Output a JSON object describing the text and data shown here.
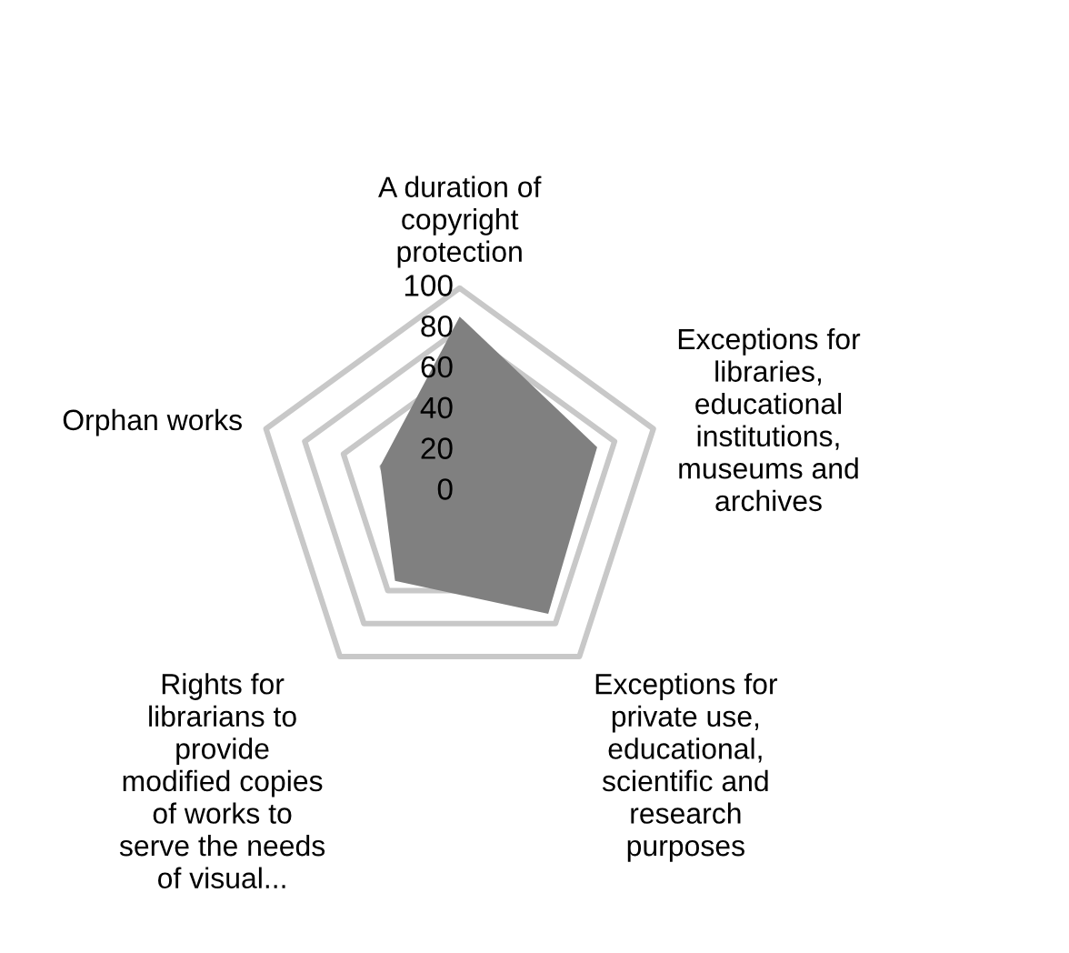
{
  "chart_data": {
    "type": "radar",
    "categories": [
      "A duration of\ncopyright\nprotection",
      "Exceptions for\nlibraries,\neducational\ninstitutions,\nmuseums and\narchives",
      "Exceptions for\nprivate use,\neducational,\nscientific and\nresearch\npurposes",
      "Rights for\nlibrarians to\nprovide\nmodified copies\nof works to\nserve the needs\nof visual...",
      "Orphan works"
    ],
    "series": [
      {
        "color": "#808080",
        "values": [
          86,
          71,
          74,
          54,
          41
        ]
      }
    ],
    "ylim": [
      0,
      100
    ],
    "yticks": [
      0,
      20,
      40,
      60,
      80,
      100
    ],
    "grid": true
  }
}
